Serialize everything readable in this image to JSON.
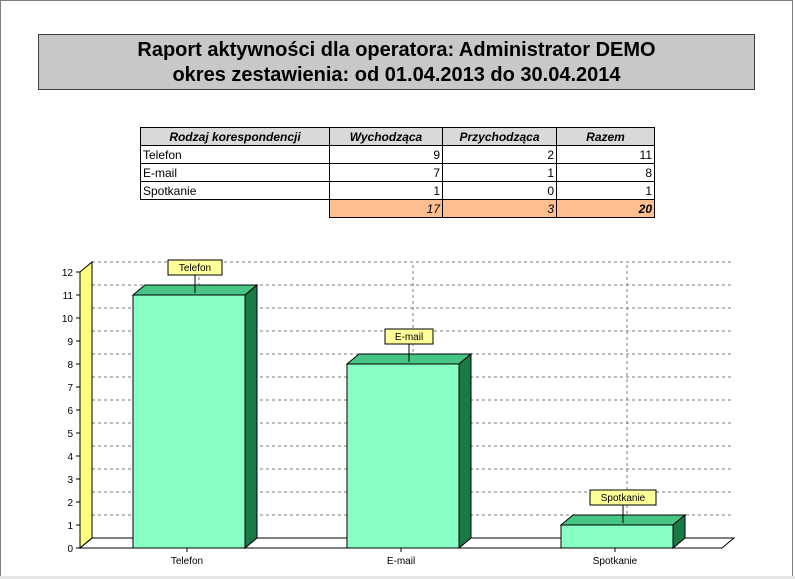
{
  "report": {
    "title_line1": "Raport aktywności dla operatora: Administrator DEMO",
    "title_line2": "okres zestawienia: od 01.04.2013 do 30.04.2014"
  },
  "table": {
    "headers": [
      "Rodzaj korespondencji",
      "Wychodząca",
      "Przychodząca",
      "Razem"
    ],
    "rows": [
      {
        "name": "Telefon",
        "wychodzaca": "9",
        "przychodzaca": "2",
        "razem": "11"
      },
      {
        "name": "E-mail",
        "wychodzaca": "7",
        "przychodzaca": "1",
        "razem": "8"
      },
      {
        "name": "Spotkanie",
        "wychodzaca": "1",
        "przychodzaca": "0",
        "razem": "1"
      }
    ],
    "totals": {
      "wychodzaca": "17",
      "przychodzaca": "3",
      "razem": "20"
    }
  },
  "colors": {
    "bar_front": "#88ffc4",
    "bar_top": "#47c585",
    "bar_side": "#1a7a45",
    "label_bg": "#ffff99",
    "wall": "#ffff80",
    "totals_bg": "#fdbf8f",
    "title_bg": "#c8c8c8"
  },
  "chart_data": {
    "type": "bar",
    "categories": [
      "Telefon",
      "E-mail",
      "Spotkanie"
    ],
    "values": [
      11,
      8,
      1
    ],
    "data_labels": [
      "Telefon",
      "E-mail",
      "Spotkanie"
    ],
    "ylim": [
      0,
      12
    ],
    "yticks": [
      "0",
      "1",
      "2",
      "3",
      "4",
      "5",
      "6",
      "7",
      "8",
      "9",
      "10",
      "11",
      "12"
    ],
    "grid": true,
    "style": "3d"
  }
}
